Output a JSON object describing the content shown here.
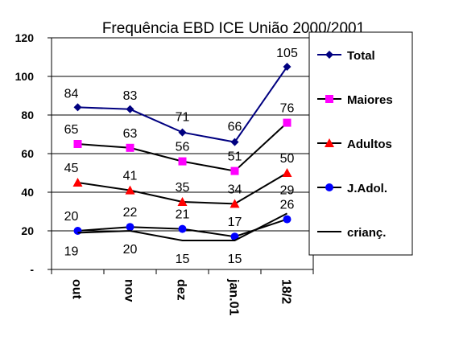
{
  "chart_data": {
    "type": "line",
    "title": "Frequência EBD ICE União 2000/2001",
    "categories": [
      "out",
      "nov",
      "dez",
      "jan.01",
      "18/2"
    ],
    "ylim": [
      0,
      120
    ],
    "yticks": [
      "-",
      "20",
      "40",
      "60",
      "80",
      "100",
      "120"
    ],
    "grid": true,
    "legend_position": "right",
    "series": [
      {
        "name": "Total",
        "values": [
          84,
          83,
          71,
          66,
          105
        ],
        "color": "#000080",
        "marker": "diamond"
      },
      {
        "name": "Maiores",
        "values": [
          65,
          63,
          56,
          51,
          76
        ],
        "color": "#ff00ff",
        "marker": "square"
      },
      {
        "name": "Adultos",
        "values": [
          45,
          41,
          35,
          34,
          50
        ],
        "color": "#ff0000",
        "marker": "triangle"
      },
      {
        "name": "J.Adol.",
        "values": [
          20,
          22,
          21,
          17,
          26
        ],
        "color": "#0000ff",
        "marker": "circle"
      },
      {
        "name": "crianç.",
        "values": [
          19,
          20,
          15,
          15,
          29
        ],
        "color": "#000000",
        "marker": "none"
      }
    ]
  }
}
